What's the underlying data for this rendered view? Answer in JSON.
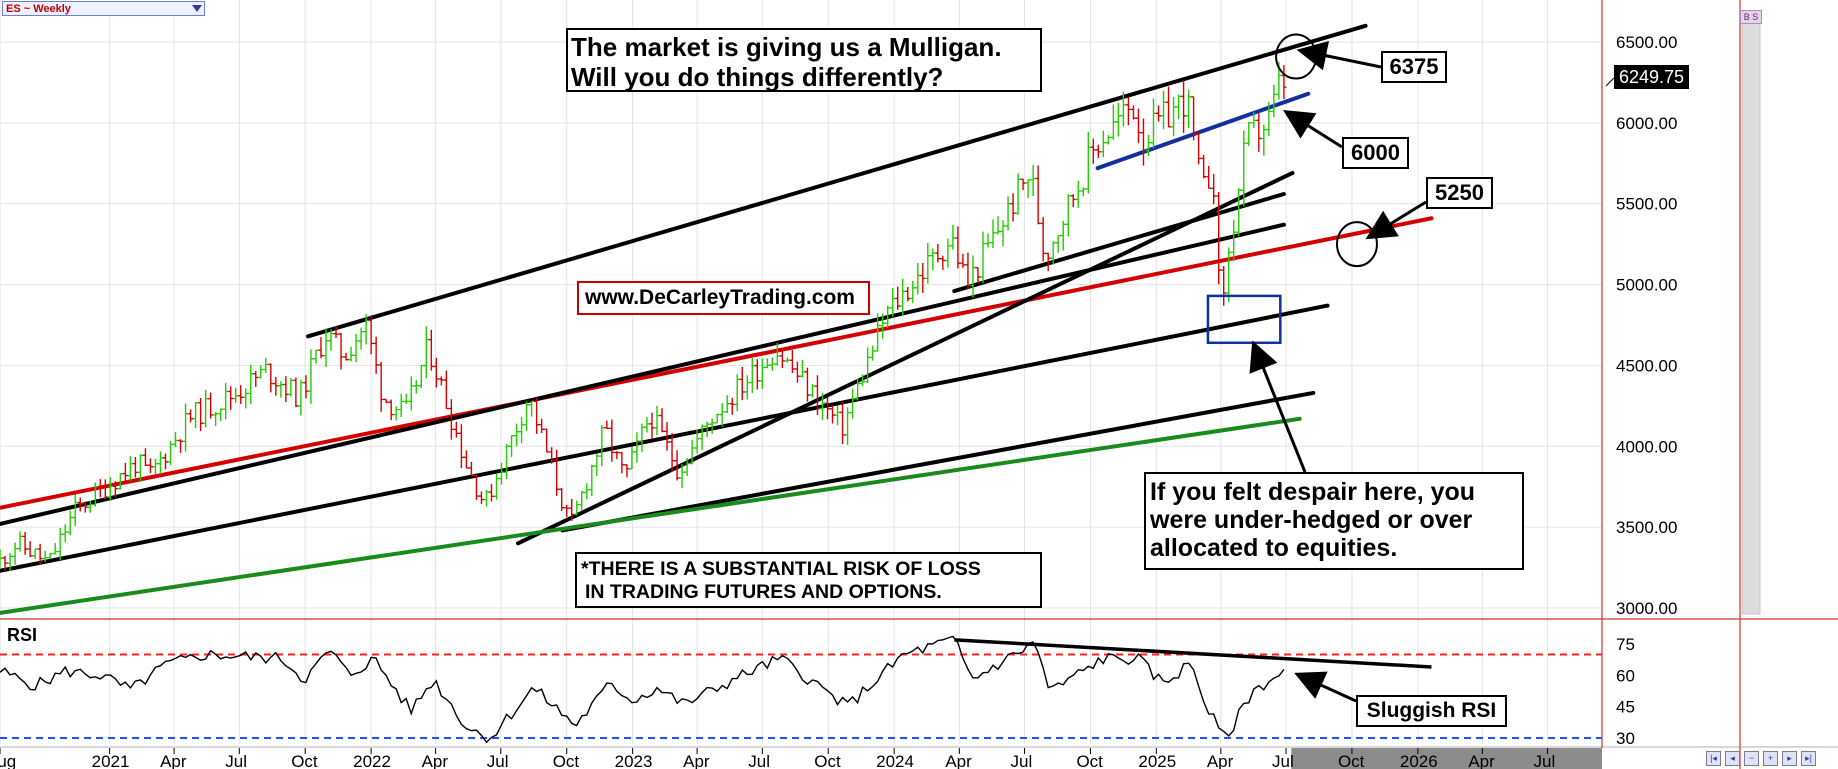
{
  "symbol": "ES ~ Weekly",
  "last_price": "6249.75",
  "rsi_label": "RSI",
  "callouts": {
    "title_line1": "The market is giving us a Mulligan.",
    "title_line2": "Will you do things differently?",
    "website": "www.DeCarleyTrading.com",
    "despair_line1": "If you felt despair here, you",
    "despair_line2": "were under-hedged or over",
    "despair_line3": "allocated to equities.",
    "risk_line1": "*THERE IS A SUBSTANTIAL RISK OF LOSS",
    "risk_line2": "IN TRADING FUTURES AND OPTIONS.",
    "level_6375": "6375",
    "level_6000": "6000",
    "level_5250": "5250",
    "sluggish_rsi": "Sluggish RSI"
  },
  "bs_tag": "B S",
  "colors": {
    "up_bar": "#22cc00",
    "down_bar": "#d60000",
    "red_channel": "#d40000",
    "blue_line": "#1030a0",
    "green_line": "#1a8a1a",
    "rsi_overbought": "#ff2020",
    "rsi_oversold": "#2050ff",
    "grid": "#e3e3e3",
    "axis_divider": "#d0342c",
    "future_zone": "#8c8c8c"
  },
  "chart_data": {
    "type": "ohlc",
    "interval": "weekly",
    "x_range": [
      "2020-08-01",
      "2026-09-15"
    ],
    "y_range": [
      2950,
      6700
    ],
    "y_ticks": [
      {
        "value": 3000,
        "label": "3000.00"
      },
      {
        "value": 3500,
        "label": "3500.00"
      },
      {
        "value": 4000,
        "label": "4000.00"
      },
      {
        "value": 4500,
        "label": "4500.00"
      },
      {
        "value": 5000,
        "label": "5000.00"
      },
      {
        "value": 5500,
        "label": "5500.00"
      },
      {
        "value": 6000,
        "label": "6000.00"
      },
      {
        "value": 6500,
        "label": "6500.00"
      }
    ],
    "x_ticks": [
      {
        "date": "2020-08-01",
        "label": "Aug"
      },
      {
        "date": "2021-01-01",
        "label": "2021"
      },
      {
        "date": "2021-04-01",
        "label": "Apr"
      },
      {
        "date": "2021-07-01",
        "label": "Jul"
      },
      {
        "date": "2021-10-01",
        "label": "Oct"
      },
      {
        "date": "2022-01-01",
        "label": "2022"
      },
      {
        "date": "2022-04-01",
        "label": "Apr"
      },
      {
        "date": "2022-07-01",
        "label": "Jul"
      },
      {
        "date": "2022-10-01",
        "label": "Oct"
      },
      {
        "date": "2023-01-01",
        "label": "2023"
      },
      {
        "date": "2023-04-01",
        "label": "Apr"
      },
      {
        "date": "2023-07-01",
        "label": "Jul"
      },
      {
        "date": "2023-10-01",
        "label": "Oct"
      },
      {
        "date": "2024-01-01",
        "label": "2024"
      },
      {
        "date": "2024-04-01",
        "label": "Apr"
      },
      {
        "date": "2024-07-01",
        "label": "Jul"
      },
      {
        "date": "2024-10-01",
        "label": "Oct"
      },
      {
        "date": "2025-01-01",
        "label": "2025"
      },
      {
        "date": "2025-04-01",
        "label": "Apr"
      },
      {
        "date": "2025-07-01",
        "label": "Jul"
      },
      {
        "date": "2025-10-01",
        "label": "Oct"
      },
      {
        "date": "2026-01-01",
        "label": "2026"
      },
      {
        "date": "2026-04-01",
        "label": "Apr"
      },
      {
        "date": "2026-07-01",
        "label": "Jul"
      }
    ],
    "last_bar_date": "2025-06-30",
    "price_path": [
      [
        "2020-08-01",
        3260
      ],
      [
        "2020-09-01",
        3400
      ],
      [
        "2020-10-15",
        3280
      ],
      [
        "2020-11-20",
        3600
      ],
      [
        "2020-12-31",
        3740
      ],
      [
        "2021-02-15",
        3900
      ],
      [
        "2021-03-05",
        3820
      ],
      [
        "2021-04-30",
        4180
      ],
      [
        "2021-06-30",
        4320
      ],
      [
        "2021-08-15",
        4470
      ],
      [
        "2021-09-30",
        4300
      ],
      [
        "2021-11-05",
        4700
      ],
      [
        "2021-12-01",
        4560
      ],
      [
        "2021-12-31",
        4760
      ],
      [
        "2022-01-25",
        4300
      ],
      [
        "2022-02-25",
        4200
      ],
      [
        "2022-03-29",
        4620
      ],
      [
        "2022-05-20",
        3900
      ],
      [
        "2022-06-16",
        3640
      ],
      [
        "2022-08-16",
        4310
      ],
      [
        "2022-10-13",
        3500
      ],
      [
        "2022-11-30",
        4100
      ],
      [
        "2022-12-28",
        3800
      ],
      [
        "2023-02-02",
        4200
      ],
      [
        "2023-03-13",
        3850
      ],
      [
        "2023-05-01",
        4200
      ],
      [
        "2023-07-27",
        4600
      ],
      [
        "2023-10-27",
        4110
      ],
      [
        "2023-12-28",
        4820
      ],
      [
        "2024-03-28",
        5290
      ],
      [
        "2024-04-19",
        5000
      ],
      [
        "2024-07-16",
        5700
      ],
      [
        "2024-08-05",
        5180
      ],
      [
        "2024-10-18",
        5880
      ],
      [
        "2024-12-06",
        6110
      ],
      [
        "2024-12-20",
        5900
      ],
      [
        "2025-02-19",
        6160
      ],
      [
        "2025-03-13",
        5560
      ],
      [
        "2025-03-28",
        5730
      ],
      [
        "2025-04-07",
        4830
      ],
      [
        "2025-05-14",
        5900
      ],
      [
        "2025-06-13",
        6000
      ],
      [
        "2025-06-30",
        6250
      ]
    ],
    "trendlines": [
      {
        "from": [
          "2021-10-05",
          4680
        ],
        "to": [
          "2025-10-20",
          6600
        ],
        "color": "black",
        "width": 4
      },
      {
        "from": [
          "2020-08-01",
          3620
        ],
        "to": [
          "2026-01-20",
          5410
        ],
        "color": "red",
        "width": 4
      },
      {
        "from": [
          "2020-08-01",
          3520
        ],
        "to": [
          "2025-06-28",
          5370
        ],
        "color": "black",
        "width": 4
      },
      {
        "from": [
          "2024-03-25",
          4960
        ],
        "to": [
          "2025-06-28",
          5560
        ],
        "color": "black",
        "width": 4
      },
      {
        "from": [
          "2020-08-01",
          3230
        ],
        "to": [
          "2025-08-28",
          4870
        ],
        "color": "black",
        "width": 4
      },
      {
        "from": [
          "2022-07-25",
          3400
        ],
        "to": [
          "2025-07-10",
          5690
        ],
        "color": "black",
        "width": 4
      },
      {
        "from": [
          "2022-09-25",
          3480
        ],
        "to": [
          "2025-08-08",
          4330
        ],
        "color": "black",
        "width": 4
      },
      {
        "from": [
          "2020-08-01",
          2970
        ],
        "to": [
          "2025-07-20",
          4170
        ],
        "color": "green",
        "width": 4
      },
      {
        "from": [
          "2024-10-11",
          5720
        ],
        "to": [
          "2025-08-01",
          6180
        ],
        "color": "blue",
        "width": 4
      }
    ],
    "circles": [
      {
        "date": "2025-07-15",
        "value": 6410
      },
      {
        "date": "2025-10-08",
        "value": 5250
      }
    ],
    "boxes": [
      {
        "from": [
          "2025-03-14",
          4930
        ],
        "to": [
          "2025-06-23",
          4640
        ],
        "color": "blue"
      }
    ],
    "rsi": {
      "y_range": [
        26,
        84
      ],
      "ticks": [
        30,
        45,
        60,
        75
      ],
      "overbought": 70,
      "oversold": 30,
      "last_value": 62,
      "path": [
        [
          "2020-08-01",
          62
        ],
        [
          "2020-09-20",
          55
        ],
        [
          "2020-11-01",
          62
        ],
        [
          "2020-12-20",
          60
        ],
        [
          "2021-01-31",
          53
        ],
        [
          "2021-03-20",
          65
        ],
        [
          "2021-05-15",
          70
        ],
        [
          "2021-08-30",
          68
        ],
        [
          "2021-09-30",
          58
        ],
        [
          "2021-11-05",
          72
        ],
        [
          "2021-12-01",
          60
        ],
        [
          "2022-01-05",
          68
        ],
        [
          "2022-02-25",
          43
        ],
        [
          "2022-03-29",
          58
        ],
        [
          "2022-05-15",
          35
        ],
        [
          "2022-06-16",
          30
        ],
        [
          "2022-08-16",
          54
        ],
        [
          "2022-10-13",
          36
        ],
        [
          "2022-12-01",
          56
        ],
        [
          "2023-01-01",
          48
        ],
        [
          "2023-02-05",
          54
        ],
        [
          "2023-03-13",
          46
        ],
        [
          "2023-06-15",
          62
        ],
        [
          "2023-07-27",
          68
        ],
        [
          "2023-10-27",
          45
        ],
        [
          "2024-01-15",
          70
        ],
        [
          "2024-03-25",
          77
        ],
        [
          "2024-04-19",
          58
        ],
        [
          "2024-07-16",
          76
        ],
        [
          "2024-08-05",
          52
        ],
        [
          "2024-10-18",
          68
        ],
        [
          "2024-12-06",
          68
        ],
        [
          "2025-01-10",
          56
        ],
        [
          "2025-02-19",
          66
        ],
        [
          "2025-03-13",
          44
        ],
        [
          "2025-04-07",
          29
        ],
        [
          "2025-05-14",
          52
        ],
        [
          "2025-06-10",
          58
        ],
        [
          "2025-06-30",
          62
        ]
      ],
      "trendline": {
        "from": [
          "2024-03-25",
          77
        ],
        "to": [
          "2026-01-20",
          64
        ]
      }
    },
    "arrows": [
      {
        "from_box": "level_6375",
        "to": [
          "2025-07-24",
          6445
        ]
      },
      {
        "from_box": "level_6000",
        "to": [
          "2025-07-04",
          6060
        ]
      },
      {
        "from_box": "level_5250",
        "to": [
          "2025-10-27",
          5300
        ]
      },
      {
        "from_box": "despair",
        "to": [
          "2025-05-18",
          4620
        ]
      },
      {
        "from_box": "sluggish_rsi",
        "rsi_to": [
          "2025-07-20",
          60
        ]
      }
    ]
  }
}
